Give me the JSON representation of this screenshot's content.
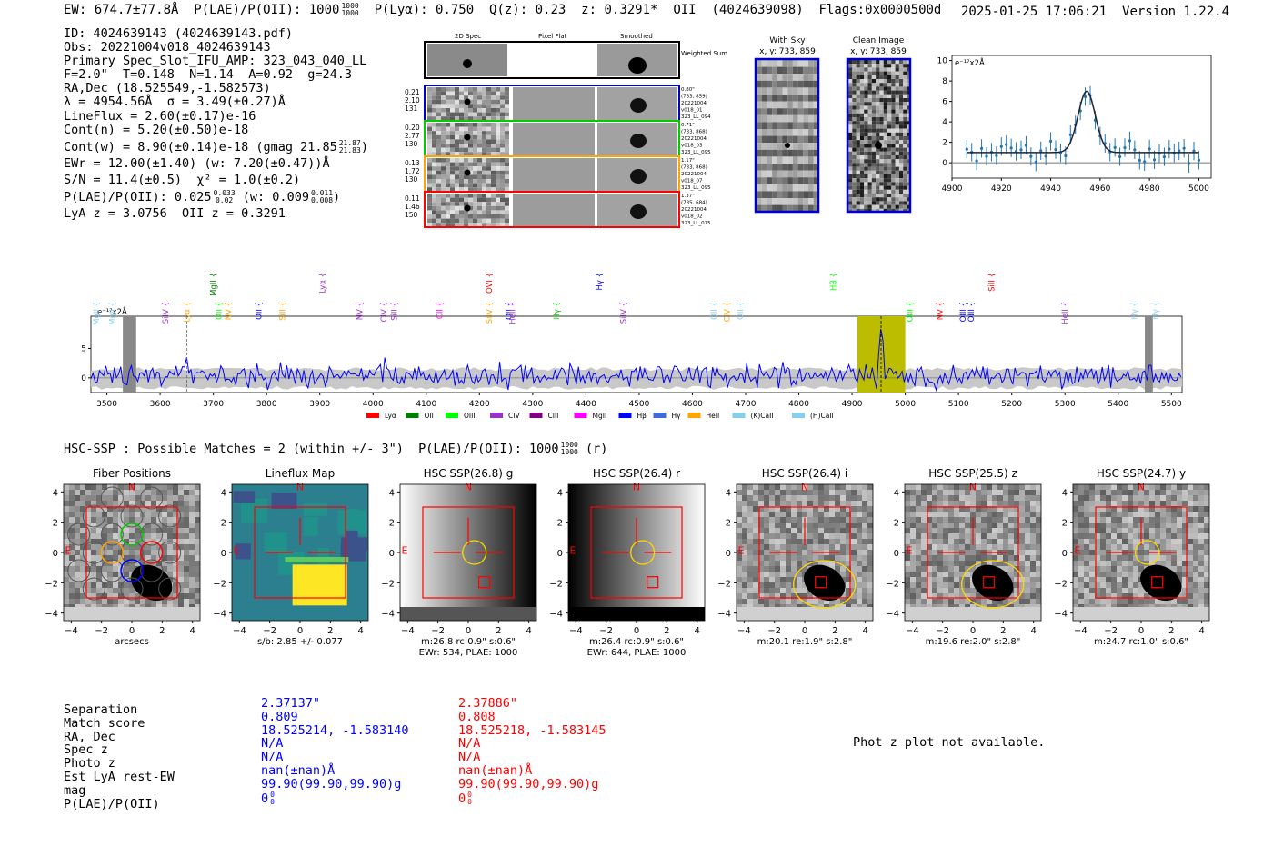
{
  "header": {
    "ew": "EW: 674.7±77.8Å",
    "plae": "P(LAE)/P(OII): 1000",
    "plae_hi": "1000",
    "plae_lo": "1000",
    "plya": "P(Lyα): 0.750",
    "qz": "Q(z): 0.23",
    "z": "z: 0.3291*",
    "line": "OII",
    "detid": "(4024639098)",
    "flags": "Flags:0x0000500d",
    "timestamp": "2025-01-25 17:06:21",
    "version": "Version 1.22.4"
  },
  "info": {
    "id": "ID: 4024639143 (4024639143.pdf)",
    "obs": "Obs: 20221004v018_4024639143",
    "primary": "Primary Spec_Slot_IFU_AMP: 323_043_040_LL",
    "f": "F=2.0\"  T=0.148  N=1.14  A=0.92  g=24.3",
    "radec": "RA,Dec (18.525549,-1.582573)",
    "lambda": "λ = 4954.56Å  σ = 3.49(±0.27)Å",
    "lineflux": "LineFlux = 2.60(±0.17)e-16",
    "contn": "Cont(n) = 5.20(±0.50)e-18",
    "contw": "Cont(w) = 8.90(±0.14)e-18 (gmag 21.85",
    "contw_hi": "21.87",
    "contw_lo": "21.83",
    "ewr": "EWr = 12.00(±1.40) (w: 7.20(±0.47))Å",
    "sn": "S/N = 11.4(±0.5)  χ² = 1.0(±0.2)",
    "plae": "P(LAE)/P(OII): 0.025",
    "plae_hi": "0.033",
    "plae_lo": "0.02",
    "plae_w": "(w: 0.009",
    "plae_w_hi": "0.011",
    "plae_w_lo": "0.008",
    "lyaz": "LyA z = 3.0756  OII z = 0.3291"
  },
  "cutouts": {
    "col_2d": "2D Spec",
    "col_flat": "Pixel Flat",
    "col_smooth": "Smoothed",
    "weighted": "Weighted Sum",
    "rows": [
      {
        "nums": [
          "0.21",
          "2.10",
          "131"
        ],
        "meta": [
          "0.80\"",
          "(733, 859)",
          "20221004",
          "v018_01",
          "323_LL_094"
        ],
        "color": "#0000cc"
      },
      {
        "nums": [
          "0.20",
          "2.77",
          "130"
        ],
        "meta": [
          "0.71\"",
          "(733, 868)",
          "20221004",
          "v018_03",
          "323_LL_095"
        ],
        "color": "#00cc00"
      },
      {
        "nums": [
          "0.13",
          "1.72",
          "130"
        ],
        "meta": [
          "1.17\"",
          "(733, 868)",
          "20221004",
          "v018_07",
          "323_LL_095"
        ],
        "color": "#ffa500"
      },
      {
        "nums": [
          "0.11",
          "1.46",
          "150"
        ],
        "meta": [
          "1.37\"",
          "(735, 684)",
          "20221004",
          "v018_02",
          "323_LL_075"
        ],
        "color": "#ff0000"
      }
    ],
    "with_sky": "With Sky",
    "with_sky_xy": "x, y: 733, 859",
    "clean": "Clean Image",
    "clean_xy": "x, y: 733, 859"
  },
  "zoom_chart": {
    "ylabel": "e⁻¹⁷x2Å",
    "xticks": [
      "4900",
      "4920",
      "4940",
      "4960",
      "4980",
      "5000"
    ],
    "yticks": [
      "0",
      "2",
      "4",
      "6",
      "8",
      "10"
    ]
  },
  "chart_data": {
    "type": "line",
    "title": "",
    "ylabel": "e⁻¹⁷x2Å",
    "xlim": [
      3470,
      5520
    ],
    "ylim": [
      -2.5,
      10.5
    ],
    "xticks": [
      "3500",
      "3600",
      "3700",
      "3800",
      "3900",
      "4000",
      "4100",
      "4200",
      "4300",
      "4400",
      "4500",
      "4600",
      "4700",
      "4800",
      "4900",
      "5000",
      "5100",
      "5200",
      "5300",
      "5400",
      "5500"
    ],
    "yticks": [
      "0",
      "5"
    ],
    "highlight_band": [
      4910,
      5000
    ],
    "peak_wavelength": 4954.56,
    "marker_wavelength": 3650,
    "masked_regions": [
      [
        3530,
        3555
      ],
      [
        5450,
        5465
      ]
    ],
    "legend": [
      {
        "label": "Lyα",
        "color": "#ff0000"
      },
      {
        "label": "OII",
        "color": "#008000"
      },
      {
        "label": "OIII",
        "color": "#00ff00"
      },
      {
        "label": "CIV",
        "color": "#9932cc"
      },
      {
        "label": "CIII",
        "color": "#800080"
      },
      {
        "label": "MgII",
        "color": "#ff00ff"
      },
      {
        "label": "Hβ",
        "color": "#0000ff"
      },
      {
        "label": "Hγ",
        "color": "#4169e1"
      },
      {
        "label": "HeII",
        "color": "#ffa500"
      },
      {
        "label": "(K)CaII",
        "color": "#87ceeb"
      },
      {
        "label": "(H)CaII",
        "color": "#87ceeb"
      }
    ],
    "lines_top": [
      {
        "label": "MgII",
        "w": 3480,
        "color": "#87ceeb"
      },
      {
        "label": "MgII",
        "w": 3510,
        "color": "#87ceeb"
      },
      {
        "label": "SiIV",
        "w": 3610,
        "color": "#9932cc"
      },
      {
        "label": "Lyα",
        "w": 3650,
        "color": "#ffa500"
      },
      {
        "label": "MgII",
        "w": 3700,
        "color": "#008000"
      },
      {
        "label": "OII",
        "w": 3710,
        "color": "#00ff00"
      },
      {
        "label": "NV",
        "w": 3728,
        "color": "#ffa500"
      },
      {
        "label": "OII",
        "w": 3785,
        "color": "#0000ff"
      },
      {
        "label": "SiII",
        "w": 3830,
        "color": "#ffa500"
      },
      {
        "label": "Lyα",
        "w": 3905,
        "color": "#9932cc"
      },
      {
        "label": "NV",
        "w": 3975,
        "color": "#9932cc"
      },
      {
        "label": "CIV",
        "w": 4020,
        "color": "#9932cc"
      },
      {
        "label": "SiII",
        "w": 4040,
        "color": "#9932cc"
      },
      {
        "label": "CII",
        "w": 4125,
        "color": "#ff00ff"
      },
      {
        "label": "OVI",
        "w": 4218,
        "color": "#ff0000"
      },
      {
        "label": "SiIV",
        "w": 4218,
        "color": "#ffa500"
      },
      {
        "label": "OII",
        "w": 4255,
        "color": "#0000ff"
      },
      {
        "label": "HeII",
        "w": 4262,
        "color": "#9932cc"
      },
      {
        "label": "Hγ",
        "w": 4345,
        "color": "#00cc00"
      },
      {
        "label": "Hγ",
        "w": 4425,
        "color": "#0000ff"
      },
      {
        "label": "SiIV",
        "w": 4470,
        "color": "#9932cc"
      },
      {
        "label": "OII",
        "w": 4640,
        "color": "#87ceeb"
      },
      {
        "label": "CIV",
        "w": 4665,
        "color": "#ffa500"
      },
      {
        "label": "OII",
        "w": 4690,
        "color": "#87ceeb"
      },
      {
        "label": "Hβ",
        "w": 4865,
        "color": "#00ff00"
      },
      {
        "label": "OIII",
        "w": 5008,
        "color": "#00ff00"
      },
      {
        "label": "NV",
        "w": 5065,
        "color": "#ff0000"
      },
      {
        "label": "OIII",
        "w": 5108,
        "color": "#0000ff"
      },
      {
        "label": "OIII",
        "w": 5124,
        "color": "#0000ff"
      },
      {
        "label": "SiII",
        "w": 5162,
        "color": "#ff0000"
      },
      {
        "label": "HeII",
        "w": 5300,
        "color": "#9932cc"
      },
      {
        "label": "Hγ",
        "w": 5430,
        "color": "#87ceeb"
      },
      {
        "label": "Hγ",
        "w": 5470,
        "color": "#87ceeb"
      }
    ]
  },
  "hsc": {
    "line": "HSC-SSP : Possible Matches = 2 (within +/- 3\")  P(LAE)/P(OII): 1000",
    "plae_hi": "1000",
    "plae_lo": "1000",
    "band": "(r)",
    "panels": [
      {
        "title": "Fiber Positions",
        "caption1": "arcsecs",
        "caption2": ""
      },
      {
        "title": "Lineflux Map",
        "caption1": "s/b: 2.85 +/- 0.077",
        "caption2": ""
      },
      {
        "title": "HSC SSP(26.8) g",
        "caption1": "m:26.8 rc:0.9\"  s:0.6\"",
        "caption2": "EWr: 534, PLAE: 1000"
      },
      {
        "title": "HSC SSP(26.4) r",
        "caption1": "m:26.4 rc:0.9\"  s:0.6\"",
        "caption2": "EWr: 644, PLAE: 1000"
      },
      {
        "title": "HSC SSP(26.4) i",
        "caption1": "m:20.1  re:1.9\"  s:2.8\"",
        "caption2": ""
      },
      {
        "title": "HSC SSP(25.5) z",
        "caption1": "m:19.6  re:2.0\"  s:2.8\"",
        "caption2": ""
      },
      {
        "title": "HSC SSP(24.7) y",
        "caption1": "m:24.7 rc:1.0\"  s:0.6\"",
        "caption2": ""
      }
    ],
    "ticks": [
      "−4",
      "−2",
      "0",
      "2",
      "4"
    ],
    "n_label": "N",
    "e_label": "E"
  },
  "table": {
    "labels": [
      "Separation",
      "Match score",
      "RA, Dec",
      "Spec z",
      "Photo z",
      "Est LyA rest-EW",
      "mag",
      "P(LAE)/P(OII)"
    ],
    "col1": [
      "2.37137\"",
      "0.809",
      "18.525214, -1.583140",
      "N/A",
      "N/A",
      "nan(±nan)Å",
      "99.90(99.90,99.90)g",
      "0"
    ],
    "col1_sup": "0",
    "col1_sub": "0",
    "col2": [
      "2.37886\"",
      "0.808",
      "18.525218, -1.583145",
      "N/A",
      "N/A",
      "nan(±nan)Å",
      "99.90(99.90,99.90)g",
      "0"
    ],
    "col2_sup": "0",
    "col2_sub": "0"
  },
  "photz": "Phot z plot not available.",
  "colors": {
    "blue": "#0000ff",
    "red": "#ff0000",
    "olive": "#bdbd00",
    "grey_band": "#c8c8c8"
  }
}
